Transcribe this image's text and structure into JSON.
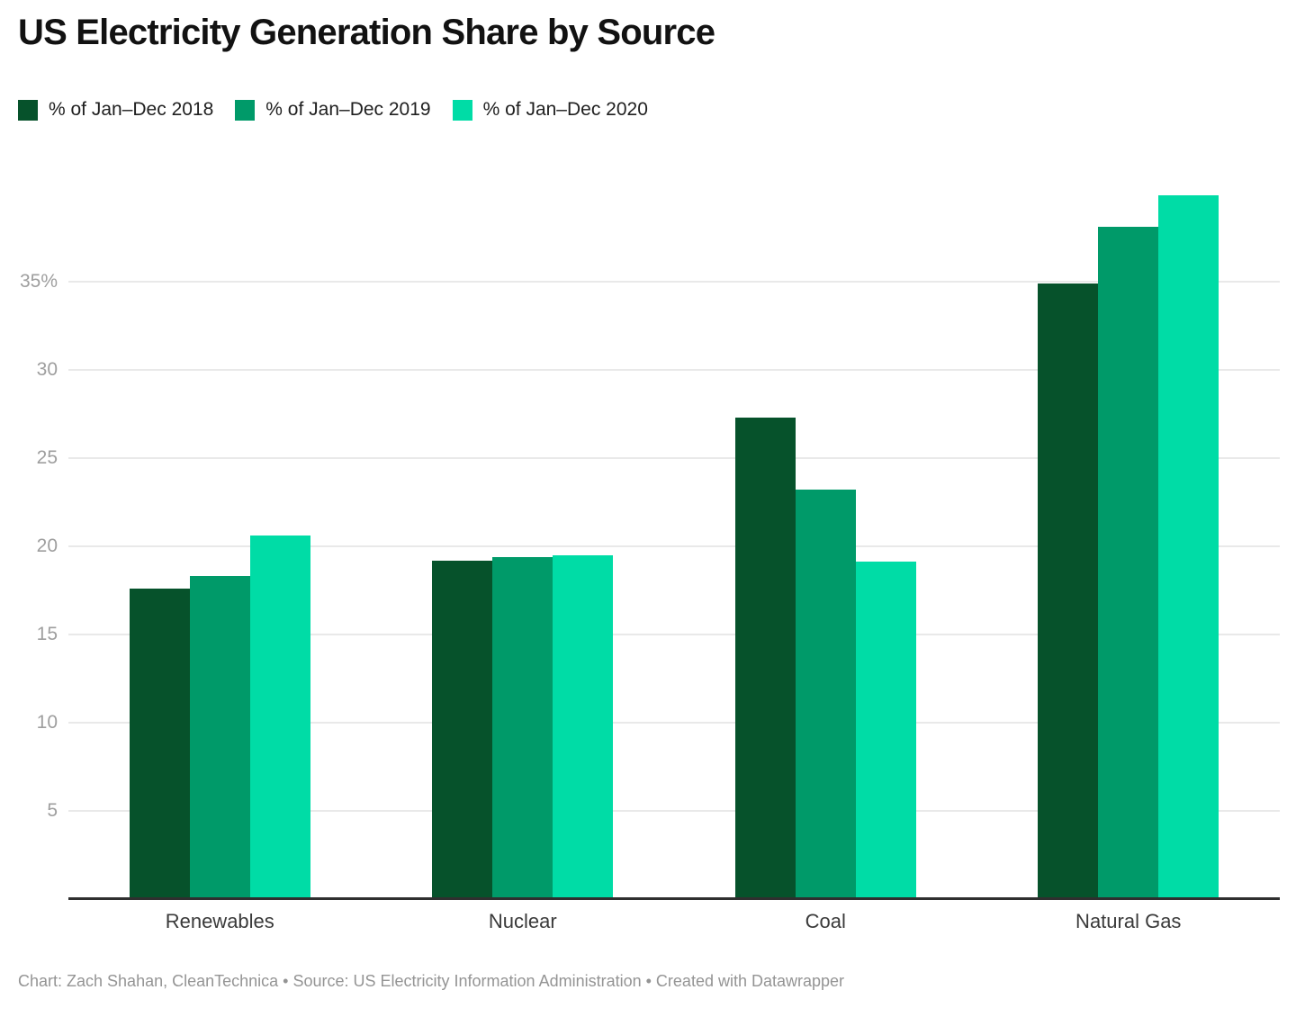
{
  "title": "US Electricity Generation Share by Source",
  "footer": {
    "text": "Chart: Zach Shahan, CleanTechnica • Source: US Electricity Information Administration • Created with Datawrapper"
  },
  "colors": {
    "series_2018": "#06522B",
    "series_2019": "#009A69",
    "series_2020": "#00DCA6",
    "gridline": "#e9e9e9",
    "axis_line": "#2f2f2f",
    "tick_label": "#9e9e9e",
    "category_label": "#3a3a3a",
    "footer_text": "#949494"
  },
  "chart_data": {
    "type": "bar",
    "categories": [
      "Renewables",
      "Nuclear",
      "Coal",
      "Natural Gas"
    ],
    "series": [
      {
        "name": "% of Jan–Dec 2018",
        "color": "#06522B",
        "values": [
          17.6,
          19.2,
          27.3,
          34.9
        ]
      },
      {
        "name": "% of Jan–Dec 2019",
        "color": "#009A69",
        "values": [
          18.3,
          19.4,
          23.2,
          38.1
        ]
      },
      {
        "name": "% of Jan–Dec 2020",
        "color": "#00DCA6",
        "values": [
          20.6,
          19.5,
          19.1,
          39.9
        ]
      }
    ],
    "title": "US Electricity Generation Share by Source",
    "xlabel": "",
    "ylabel": "",
    "ylim": [
      0,
      41
    ],
    "yticks": [
      {
        "value": 5,
        "label": "5"
      },
      {
        "value": 10,
        "label": "10"
      },
      {
        "value": 15,
        "label": "15"
      },
      {
        "value": 20,
        "label": "20"
      },
      {
        "value": 25,
        "label": "25"
      },
      {
        "value": 30,
        "label": "30"
      },
      {
        "value": 35,
        "label": "35%"
      }
    ],
    "grid": true,
    "legend_position": "top-left",
    "unit": "%"
  }
}
